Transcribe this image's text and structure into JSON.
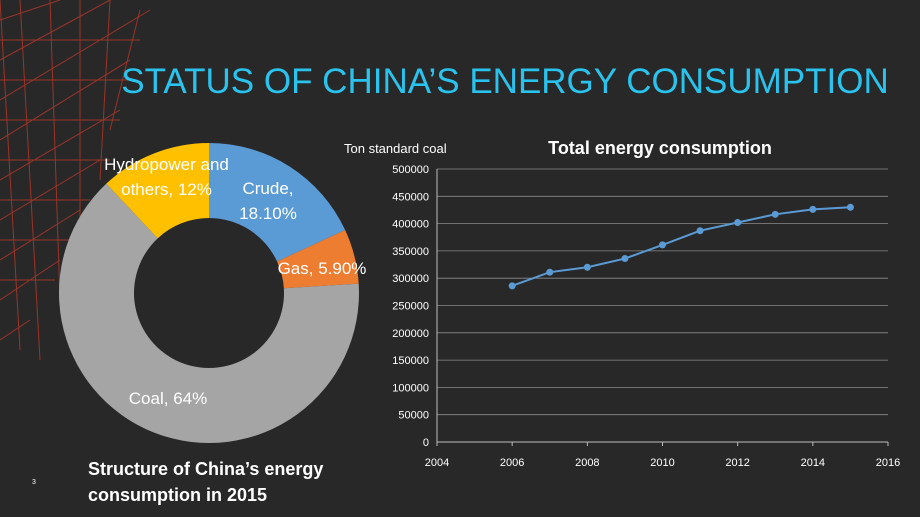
{
  "slide_title": "STATUS OF CHINA’S ENERGY CONSUMPTION",
  "page_number": "3",
  "chart_data": [
    {
      "type": "pie",
      "title": "Structure of China’s energy consumption in 2015",
      "categories": [
        "Crude,",
        "Gas,",
        "Coal,",
        "Hydropower and others,"
      ],
      "values": [
        18.1,
        5.9,
        64,
        12
      ],
      "value_labels": [
        "18.10%",
        "5.90%",
        "64%",
        "12%"
      ],
      "colors": [
        "#5b9bd5",
        "#ed7d31",
        "#a5a5a5",
        "#ffc000"
      ],
      "donut": true
    },
    {
      "type": "line",
      "title": "Total energy consumption",
      "y_label": "Ton standard coal",
      "x": [
        2006,
        2007,
        2008,
        2009,
        2010,
        2011,
        2012,
        2013,
        2014,
        2015
      ],
      "values": [
        286000,
        311000,
        320000,
        336000,
        361000,
        387000,
        402000,
        417000,
        426000,
        430000
      ],
      "color": "#5b9bd5",
      "xlim": [
        2004,
        2016
      ],
      "xticks": [
        2004,
        2006,
        2008,
        2010,
        2012,
        2014,
        2016
      ],
      "ylim": [
        0,
        500000
      ],
      "yticks": [
        0,
        50000,
        100000,
        150000,
        200000,
        250000,
        300000,
        350000,
        400000,
        450000,
        500000
      ],
      "grid": true
    }
  ]
}
